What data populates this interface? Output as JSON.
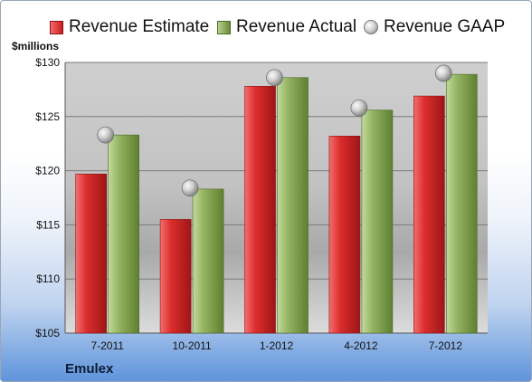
{
  "chart_data": {
    "type": "bar",
    "categories": [
      "7-2011",
      "10-2011",
      "1-2012",
      "4-2012",
      "7-2012"
    ],
    "series": [
      {
        "name": "Revenue Estimate",
        "values": [
          119.7,
          115.5,
          127.8,
          123.2,
          126.9
        ],
        "color": "#d42a2a",
        "kind": "bar"
      },
      {
        "name": "Revenue Actual",
        "values": [
          123.3,
          118.3,
          128.6,
          125.6,
          128.9
        ],
        "color": "#8cab5a",
        "kind": "bar"
      },
      {
        "name": "Revenue GAAP",
        "values": [
          123.3,
          118.4,
          128.6,
          125.8,
          129.0
        ],
        "color": "#b0b0b0",
        "kind": "marker"
      }
    ],
    "ylabel": "$millions",
    "ylim": [
      105,
      130
    ],
    "yticks": [
      "$105",
      "$110",
      "$115",
      "$120",
      "$125",
      "$130"
    ],
    "ytick_values": [
      105,
      110,
      115,
      120,
      125,
      130
    ],
    "grid": true,
    "legend_position": "top"
  },
  "footer": {
    "company": "Emulex"
  }
}
